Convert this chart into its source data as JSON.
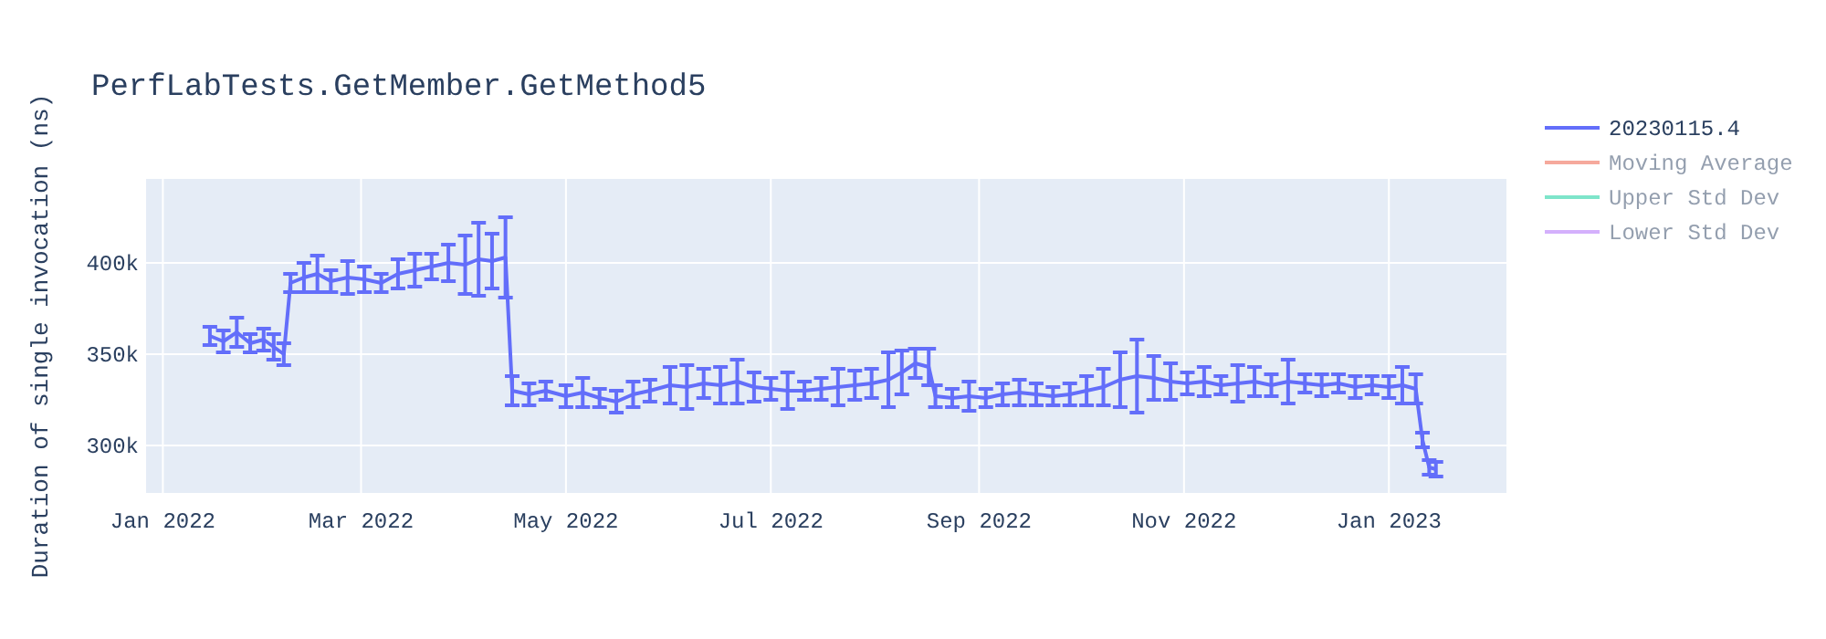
{
  "chart_data": {
    "type": "line",
    "title": "PerfLabTests.GetMember.GetMethod5",
    "ylabel": "Duration of single invocation (ns)",
    "x": [
      "2022-01-15",
      "2022-01-19",
      "2022-01-23",
      "2022-01-27",
      "2022-01-31",
      "2022-02-03",
      "2022-02-06",
      "2022-02-08",
      "2022-02-12",
      "2022-02-16",
      "2022-02-20",
      "2022-02-25",
      "2022-03-02",
      "2022-03-07",
      "2022-03-12",
      "2022-03-17",
      "2022-03-22",
      "2022-03-27",
      "2022-04-01",
      "2022-04-05",
      "2022-04-09",
      "2022-04-13",
      "2022-04-15",
      "2022-04-20",
      "2022-04-25",
      "2022-05-01",
      "2022-05-06",
      "2022-05-11",
      "2022-05-16",
      "2022-05-21",
      "2022-05-26",
      "2022-06-01",
      "2022-06-06",
      "2022-06-11",
      "2022-06-16",
      "2022-06-21",
      "2022-06-26",
      "2022-07-01",
      "2022-07-06",
      "2022-07-11",
      "2022-07-16",
      "2022-07-21",
      "2022-07-26",
      "2022-07-31",
      "2022-08-05",
      "2022-08-09",
      "2022-08-13",
      "2022-08-17",
      "2022-08-19",
      "2022-08-24",
      "2022-08-29",
      "2022-09-03",
      "2022-09-08",
      "2022-09-13",
      "2022-09-18",
      "2022-09-23",
      "2022-09-28",
      "2022-10-03",
      "2022-10-08",
      "2022-10-13",
      "2022-10-18",
      "2022-10-23",
      "2022-10-28",
      "2022-11-02",
      "2022-11-07",
      "2022-11-12",
      "2022-11-17",
      "2022-11-22",
      "2022-11-27",
      "2022-12-02",
      "2022-12-07",
      "2022-12-12",
      "2022-12-17",
      "2022-12-22",
      "2022-12-27",
      "2023-01-01",
      "2023-01-05",
      "2023-01-09",
      "2023-01-11",
      "2023-01-13",
      "2023-01-15"
    ],
    "xlim": [
      "2021-12-27",
      "2023-02-05"
    ],
    "xticks": [
      {
        "value": "2022-01-01",
        "label": "Jan 2022"
      },
      {
        "value": "2022-03-01",
        "label": "Mar 2022"
      },
      {
        "value": "2022-05-01",
        "label": "May 2022"
      },
      {
        "value": "2022-07-01",
        "label": "Jul 2022"
      },
      {
        "value": "2022-09-01",
        "label": "Sep 2022"
      },
      {
        "value": "2022-11-01",
        "label": "Nov 2022"
      },
      {
        "value": "2023-01-01",
        "label": "Jan 2023"
      }
    ],
    "ylim": [
      274000,
      446000
    ],
    "yticks": [
      {
        "value": 300000,
        "label": "300k"
      },
      {
        "value": 350000,
        "label": "350k"
      },
      {
        "value": 400000,
        "label": "400k"
      }
    ],
    "grid": true,
    "legend": "top right",
    "marker": "none",
    "line_style": "solid",
    "series": [
      {
        "name": "20230115.4",
        "color": "#636efa",
        "values": [
          360000,
          357000,
          362000,
          356000,
          358000,
          354000,
          350000,
          389000,
          392000,
          394000,
          390000,
          392000,
          391000,
          389000,
          394000,
          396000,
          398000,
          400000,
          399000,
          402000,
          401000,
          403000,
          330000,
          328000,
          330000,
          327000,
          329000,
          326000,
          324000,
          328000,
          330000,
          333000,
          332000,
          334000,
          333000,
          335000,
          332000,
          331000,
          330000,
          330000,
          331000,
          332000,
          333000,
          334000,
          336000,
          340000,
          345000,
          343000,
          327000,
          326000,
          327000,
          326000,
          328000,
          329000,
          328000,
          327000,
          328000,
          330000,
          332000,
          336000,
          338000,
          337000,
          335000,
          334000,
          335000,
          333000,
          334000,
          335000,
          333000,
          335000,
          334000,
          333000,
          334000,
          332000,
          333000,
          332000,
          333000,
          331000,
          303000,
          288000,
          287000
        ],
        "errors": [
          5000,
          6000,
          8000,
          5000,
          6000,
          7000,
          6000,
          5000,
          8000,
          10000,
          6000,
          9000,
          7000,
          5000,
          8000,
          9000,
          7000,
          10000,
          16000,
          20000,
          15000,
          22000,
          8000,
          6000,
          5000,
          6000,
          8000,
          5000,
          6000,
          7000,
          6000,
          10000,
          12000,
          8000,
          10000,
          12000,
          8000,
          6000,
          10000,
          5000,
          6000,
          10000,
          8000,
          8000,
          15000,
          12000,
          8000,
          10000,
          6000,
          5000,
          8000,
          5000,
          6000,
          7000,
          6000,
          5000,
          6000,
          8000,
          10000,
          15000,
          20000,
          12000,
          10000,
          6000,
          8000,
          5000,
          10000,
          8000,
          6000,
          12000,
          5000,
          6000,
          5000,
          6000,
          5000,
          6000,
          10000,
          8000,
          4000,
          4000,
          4000
        ]
      },
      {
        "name": "Moving Average",
        "color": "#ef553b",
        "values": [
          null,
          null,
          null,
          null,
          null,
          null,
          null,
          null,
          null,
          null,
          null,
          null,
          null,
          null,
          null,
          null,
          null,
          null,
          null,
          null,
          null,
          null,
          null,
          null,
          null,
          null,
          null,
          null,
          null,
          null,
          null,
          null,
          null,
          null,
          null,
          null,
          null,
          null,
          null,
          null,
          null,
          null,
          null,
          null,
          null,
          null,
          null,
          null,
          null,
          null,
          null,
          null,
          null,
          null,
          null,
          null,
          null,
          null,
          null,
          null,
          null,
          null,
          null,
          null,
          null,
          null,
          null,
          null,
          null,
          null,
          null,
          null,
          null,
          null,
          null,
          null,
          null,
          null,
          null,
          null,
          null
        ]
      },
      {
        "name": "Upper Std Dev",
        "color": "#00cc96",
        "values": [
          null,
          null,
          null,
          null,
          null,
          null,
          null,
          null,
          null,
          null,
          null,
          null,
          null,
          null,
          null,
          null,
          null,
          null,
          null,
          null,
          null,
          null,
          null,
          null,
          null,
          null,
          null,
          null,
          null,
          null,
          null,
          null,
          null,
          null,
          null,
          null,
          null,
          null,
          null,
          null,
          null,
          null,
          null,
          null,
          null,
          null,
          null,
          null,
          null,
          null,
          null,
          null,
          null,
          null,
          null,
          null,
          null,
          null,
          null,
          null,
          null,
          null,
          null,
          null,
          null,
          null,
          null,
          null,
          null,
          null,
          null,
          null,
          null,
          null,
          null,
          null,
          null,
          null,
          null,
          null,
          null
        ]
      },
      {
        "name": "Lower Std Dev",
        "color": "#ab63fa",
        "values": [
          null,
          null,
          null,
          null,
          null,
          null,
          null,
          null,
          null,
          null,
          null,
          null,
          null,
          null,
          null,
          null,
          null,
          null,
          null,
          null,
          null,
          null,
          null,
          null,
          null,
          null,
          null,
          null,
          null,
          null,
          null,
          null,
          null,
          null,
          null,
          null,
          null,
          null,
          null,
          null,
          null,
          null,
          null,
          null,
          null,
          null,
          null,
          null,
          null,
          null,
          null,
          null,
          null,
          null,
          null,
          null,
          null,
          null,
          null,
          null,
          null,
          null,
          null,
          null,
          null,
          null,
          null,
          null,
          null,
          null,
          null,
          null,
          null,
          null,
          null,
          null,
          null,
          null,
          null,
          null,
          null
        ]
      }
    ]
  }
}
